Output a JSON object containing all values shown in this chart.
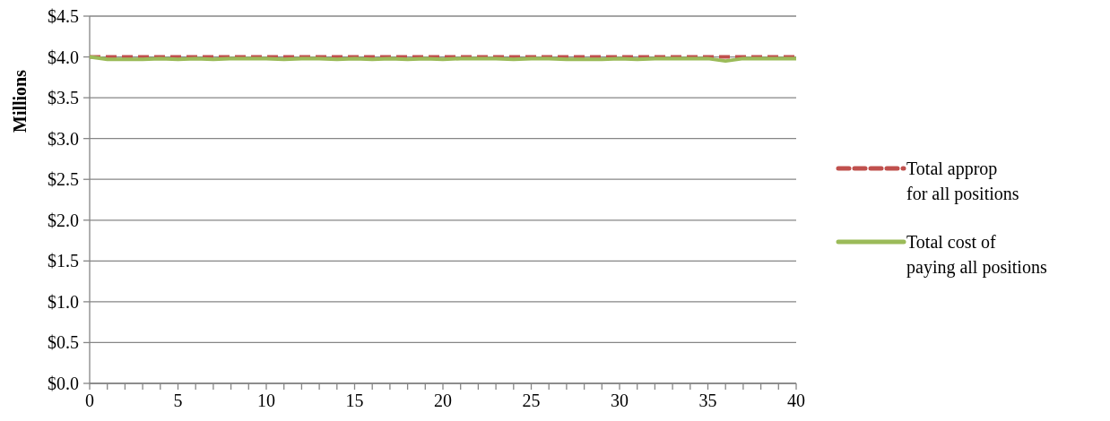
{
  "chart_data": {
    "type": "line",
    "ylabel": "Millions",
    "x": [
      0,
      1,
      2,
      3,
      4,
      5,
      6,
      7,
      8,
      9,
      10,
      11,
      12,
      13,
      14,
      15,
      16,
      17,
      18,
      19,
      20,
      21,
      22,
      23,
      24,
      25,
      26,
      27,
      28,
      29,
      30,
      31,
      32,
      33,
      34,
      35,
      36,
      37,
      38,
      39,
      40
    ],
    "series": [
      {
        "name": "Total approp for all positions",
        "color": "#c0504d",
        "line_style": "dashed",
        "values": [
          4,
          4,
          4,
          4,
          4,
          4,
          4,
          4,
          4,
          4,
          4,
          4,
          4,
          4,
          4,
          4,
          4,
          4,
          4,
          4,
          4,
          4,
          4,
          4,
          4,
          4,
          4,
          4,
          4,
          4,
          4,
          4,
          4,
          4,
          4,
          4,
          4,
          4,
          4,
          4,
          4
        ]
      },
      {
        "name": "Total cost of paying all positions",
        "color": "#9bbb59",
        "line_style": "solid",
        "values": [
          4,
          3.97,
          3.97,
          3.97,
          3.98,
          3.97,
          3.98,
          3.97,
          3.98,
          3.98,
          3.98,
          3.97,
          3.98,
          3.98,
          3.97,
          3.98,
          3.97,
          3.98,
          3.97,
          3.98,
          3.97,
          3.98,
          3.98,
          3.98,
          3.97,
          3.98,
          3.98,
          3.97,
          3.97,
          3.97,
          3.98,
          3.97,
          3.98,
          3.98,
          3.98,
          3.98,
          3.95,
          3.98,
          3.98,
          3.98,
          3.98
        ]
      }
    ],
    "xlim": [
      0,
      40
    ],
    "xticks": [
      0,
      {
        "value": 1,
        "label": null
      },
      {
        "value": 2,
        "label": null
      },
      {
        "value": 3,
        "label": null
      },
      {
        "value": 4,
        "label": null
      },
      5,
      {
        "value": 6,
        "label": null
      },
      {
        "value": 7,
        "label": null
      },
      {
        "value": 8,
        "label": null
      },
      {
        "value": 9,
        "label": null
      },
      10,
      {
        "value": 11,
        "label": null
      },
      {
        "value": 12,
        "label": null
      },
      {
        "value": 13,
        "label": null
      },
      {
        "value": 14,
        "label": null
      },
      15,
      {
        "value": 16,
        "label": null
      },
      {
        "value": 17,
        "label": null
      },
      {
        "value": 18,
        "label": null
      },
      {
        "value": 19,
        "label": null
      },
      20,
      {
        "value": 21,
        "label": null
      },
      {
        "value": 22,
        "label": null
      },
      {
        "value": 23,
        "label": null
      },
      {
        "value": 24,
        "label": null
      },
      25,
      {
        "value": 26,
        "label": null
      },
      {
        "value": 27,
        "label": null
      },
      {
        "value": 28,
        "label": null
      },
      {
        "value": 29,
        "label": null
      },
      30,
      {
        "value": 31,
        "label": null
      },
      {
        "value": 32,
        "label": null
      },
      {
        "value": 33,
        "label": null
      },
      {
        "value": 34,
        "label": null
      },
      35,
      {
        "value": 36,
        "label": null
      },
      {
        "value": 37,
        "label": null
      },
      {
        "value": 38,
        "label": null
      },
      {
        "value": 39,
        "label": null
      },
      40
    ],
    "ylim": [
      0,
      4.5
    ],
    "yticks": [
      {
        "value": 0,
        "label": "$0.0"
      },
      {
        "value": 0.5,
        "label": "$0.5"
      },
      {
        "value": 1,
        "label": "$1.0"
      },
      {
        "value": 1.5,
        "label": "$1.5"
      },
      {
        "value": 2,
        "label": "$2.0"
      },
      {
        "value": 2.5,
        "label": "$2.5"
      },
      {
        "value": 3,
        "label": "$3.0"
      },
      {
        "value": 3.5,
        "label": "$3.5"
      },
      {
        "value": 4,
        "label": "$4.0"
      },
      {
        "value": 4.5,
        "label": "$4.5"
      }
    ],
    "grid": "y",
    "legend": "right",
    "marker": "none"
  }
}
